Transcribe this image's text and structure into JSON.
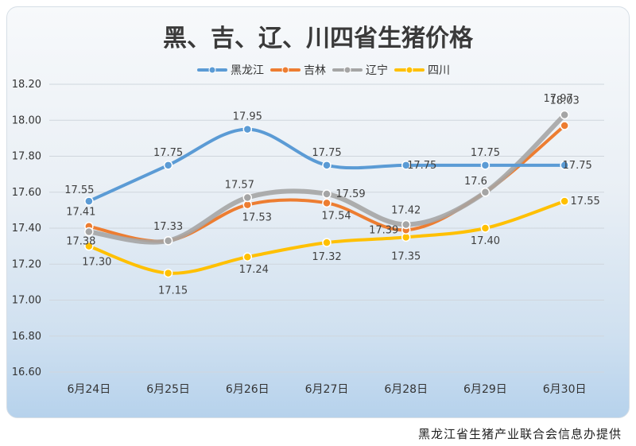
{
  "chart_data": {
    "type": "line",
    "title": "黑、吉、辽、川四省生猪价格",
    "categories": [
      "6月24日",
      "6月25日",
      "6月26日",
      "6月27日",
      "6月28日",
      "6月29日",
      "6月30日"
    ],
    "ylim": [
      16.6,
      18.2
    ],
    "yticks": [
      "16.60",
      "16.80",
      "17.00",
      "17.20",
      "17.40",
      "17.60",
      "17.80",
      "18.00",
      "18.20"
    ],
    "grid": true,
    "legend": "top",
    "series": [
      {
        "name": "黑龙江",
        "color": "#5b9bd5",
        "values": [
          17.55,
          17.75,
          17.95,
          17.75,
          17.75,
          17.75,
          17.75
        ],
        "labels": [
          "17.55",
          "17.75",
          "17.95",
          "17.75",
          "17.75",
          "17.75",
          "17.75"
        ]
      },
      {
        "name": "吉林",
        "color": "#ed7d31",
        "values": [
          17.41,
          17.33,
          17.53,
          17.54,
          17.39,
          17.6,
          17.97
        ],
        "labels": [
          "17.41",
          "",
          "17.53",
          "17.54",
          "17.39",
          "",
          "17.97"
        ]
      },
      {
        "name": "辽宁",
        "color": "#a5a5a5",
        "values": [
          17.38,
          17.33,
          17.57,
          17.59,
          17.42,
          17.6,
          18.03
        ],
        "labels": [
          "17.38",
          "17.33",
          "17.57",
          "17.59",
          "17.42",
          "17.6",
          "18.03"
        ]
      },
      {
        "name": "四川",
        "color": "#ffc000",
        "values": [
          17.3,
          17.15,
          17.24,
          17.32,
          17.35,
          17.4,
          17.55
        ],
        "labels": [
          "17.30",
          "17.15",
          "17.24",
          "17.32",
          "17.35",
          "17.40",
          "17.55"
        ]
      }
    ]
  },
  "credit": "黑龙江省生猪产业联合会信息办提供"
}
